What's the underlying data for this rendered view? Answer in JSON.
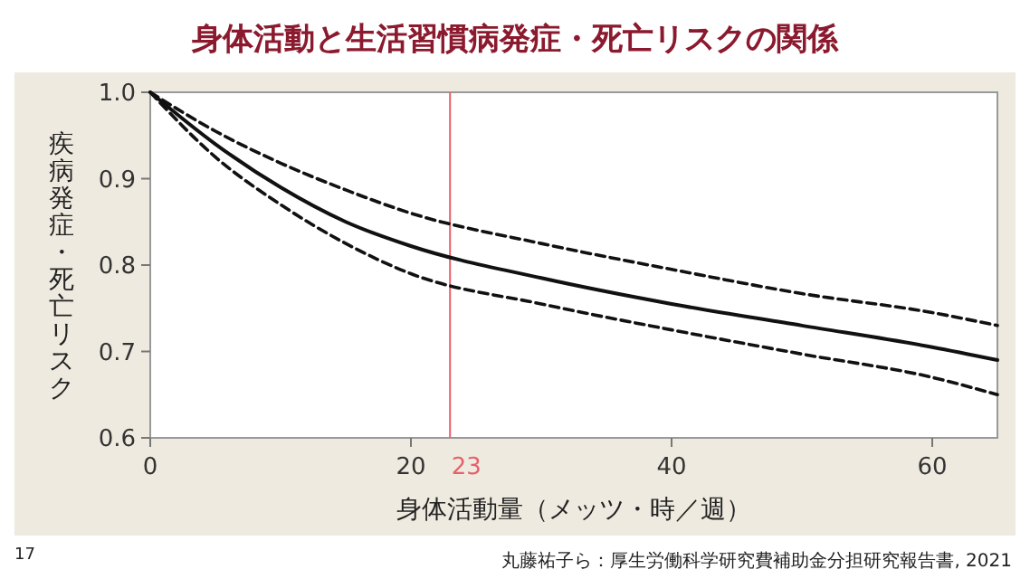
{
  "chart_data": {
    "type": "line",
    "title": "身体活動と生活習慣病発症・死亡リスクの関係",
    "xlabel": "身体活動量（メッツ・時／週）",
    "ylabel": "疾病発症・死亡リスク",
    "x": [
      0,
      5,
      10,
      15,
      20,
      30,
      40,
      50,
      60,
      65
    ],
    "series": [
      {
        "color": "#111111",
        "line_style": "solid",
        "values": [
          1.0,
          0.94,
          0.89,
          0.85,
          0.822,
          0.785,
          0.755,
          0.73,
          0.705,
          0.69
        ]
      },
      {
        "color": "#111111",
        "line_style": "dashed",
        "values": [
          1.0,
          0.955,
          0.918,
          0.887,
          0.86,
          0.825,
          0.795,
          0.767,
          0.745,
          0.73
        ]
      },
      {
        "color": "#111111",
        "line_style": "dashed",
        "values": [
          1.0,
          0.925,
          0.87,
          0.825,
          0.79,
          0.755,
          0.725,
          0.697,
          0.67,
          0.65
        ]
      }
    ],
    "xlim": [
      0,
      65
    ],
    "xticks": [
      0,
      20,
      40,
      60
    ],
    "ylim": [
      0.6,
      1.0
    ],
    "yticks": [
      {
        "value": 0.6,
        "label": "0.6"
      },
      {
        "value": 0.7,
        "label": "0.7"
      },
      {
        "value": 0.8,
        "label": "0.8"
      },
      {
        "value": 0.9,
        "label": "0.9"
      },
      {
        "value": 1.0,
        "label": "1.0"
      }
    ],
    "ref_lines": [
      {
        "axis": "x",
        "value": 23,
        "label": "23",
        "color": "#e8606a"
      }
    ],
    "annotations": [
      "17",
      "丸藤祐子ら：厚生労働科学研究費補助金分担研究報告書, 2021"
    ]
  }
}
